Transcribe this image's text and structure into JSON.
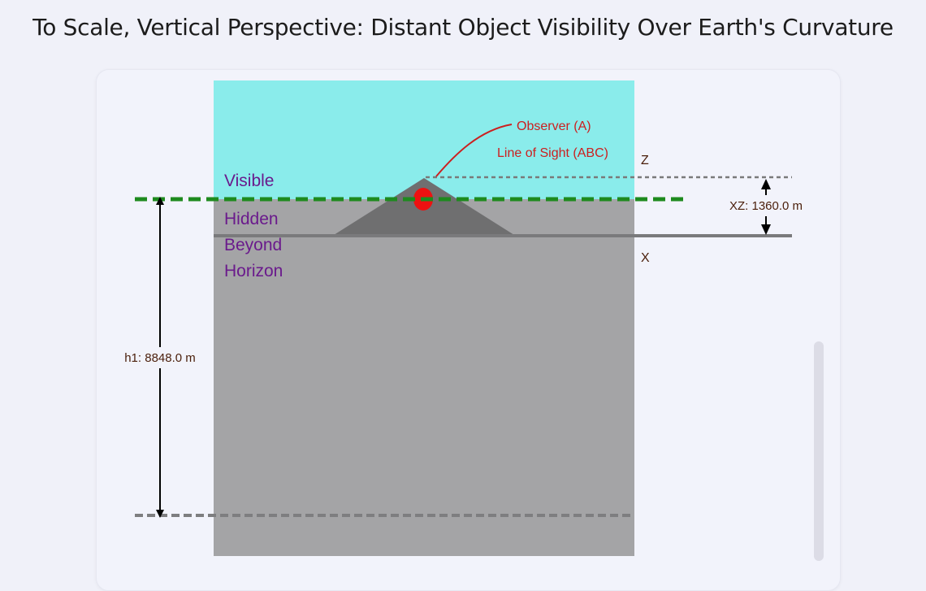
{
  "title": "To Scale, Vertical Perspective: Distant Object Visibility Over Earth's Curvature",
  "diagram": {
    "observer_label": "Observer (A)",
    "line_of_sight_label": "Line of Sight (ABC)",
    "visible_label": "Visible",
    "hidden_label_lines": [
      "Hidden",
      "Beyond",
      "Horizon"
    ],
    "point_z_label": "Z",
    "point_x_label": "X",
    "xz_label": "XZ: 1360.0 m",
    "h1_label": "h1: 8848.0 m"
  },
  "colors": {
    "sky": "#8aeceb",
    "ground": "#a4a4a6",
    "mountain": "#6f6f70",
    "horizon_line": "#1e8a1e",
    "observer": "#ee1111",
    "observer_text": "#cc1f1f",
    "region_text": "#6a1a8c",
    "annotation_text": "#4a1e0a"
  },
  "icons": {
    "observer": "observer-dot-icon",
    "arrow_up": "arrow-up-icon",
    "arrow_down": "arrow-down-icon"
  }
}
